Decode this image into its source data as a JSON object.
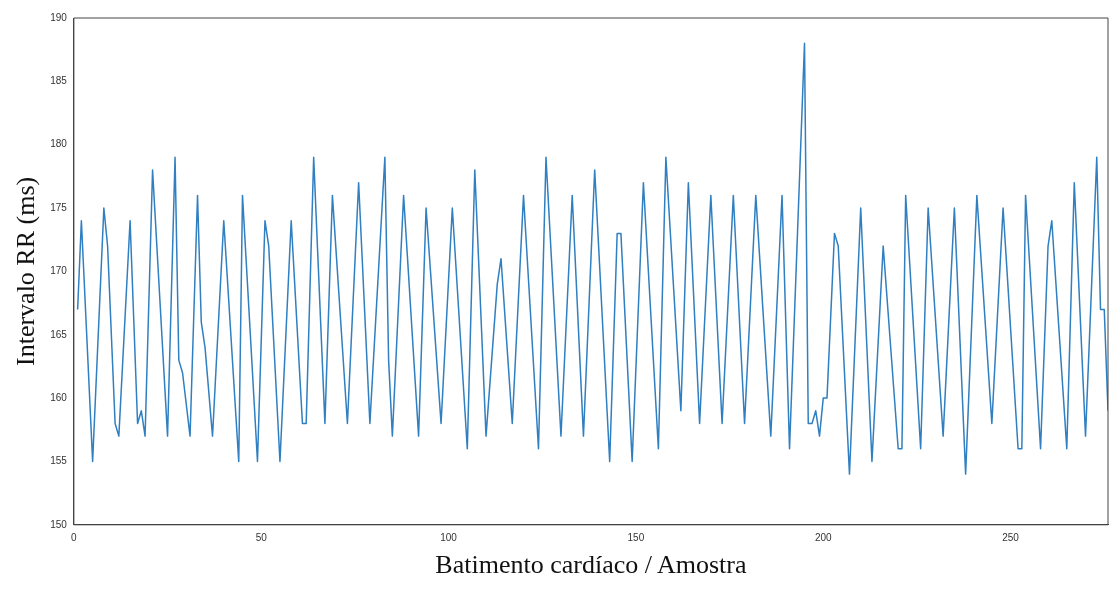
{
  "chart_data": {
    "type": "line",
    "xlabel": "Batimento cardíaco / Amostra",
    "ylabel": "Intervalo RR (ms)",
    "x": [
      1,
      2,
      5,
      8,
      9,
      11,
      12,
      15,
      17,
      18,
      19,
      21,
      25,
      27,
      28,
      29,
      31,
      33,
      34,
      35,
      37,
      40,
      44,
      45,
      49,
      51,
      52,
      55,
      58,
      61,
      62,
      64,
      67,
      69,
      73,
      76,
      79,
      83,
      84,
      85,
      88,
      92,
      94,
      98,
      101,
      105,
      107,
      110,
      113,
      114,
      117,
      120,
      124,
      126,
      130,
      133,
      136,
      139,
      143,
      145,
      146,
      149,
      152,
      156,
      158,
      162,
      164,
      167,
      170,
      173,
      176,
      179,
      182,
      186,
      189,
      191,
      195,
      196,
      197,
      198,
      199,
      200,
      201,
      203,
      204,
      207,
      210,
      213,
      216,
      220,
      221,
      222,
      226,
      228,
      232,
      235,
      238,
      241,
      245,
      248,
      252,
      253,
      254,
      258,
      260,
      261,
      265,
      267,
      270,
      273,
      274,
      275,
      276
    ],
    "series": [
      {
        "color": "#2f7fc1",
        "values": [
          167,
          174,
          155,
          175,
          172,
          158,
          157,
          174,
          158,
          159,
          157,
          178,
          157,
          179,
          163,
          162,
          157,
          176,
          166,
          164,
          157,
          174,
          155,
          176,
          155,
          174,
          172,
          155,
          174,
          158,
          158,
          179,
          158,
          176,
          158,
          177,
          158,
          179,
          163,
          157,
          176,
          157,
          175,
          158,
          175,
          156,
          178,
          157,
          169,
          171,
          158,
          176,
          156,
          179,
          157,
          176,
          157,
          178,
          155,
          173,
          173,
          155,
          177,
          156,
          179,
          159,
          177,
          158,
          176,
          158,
          176,
          158,
          176,
          157,
          176,
          156,
          188,
          158,
          158,
          159,
          157,
          160,
          160,
          173,
          172,
          154,
          175,
          155,
          172,
          156,
          156,
          176,
          156,
          175,
          157,
          175,
          154,
          176,
          158,
          175,
          156,
          156,
          176,
          156,
          172,
          174,
          156,
          177,
          157,
          179,
          167,
          167,
          159
        ]
      }
    ],
    "xlim": [
      0,
      276
    ],
    "xticks": [
      0,
      50,
      100,
      150,
      200,
      250
    ],
    "ylim": [
      150,
      190
    ],
    "yticks": [
      150,
      155,
      160,
      165,
      170,
      175,
      180,
      185,
      190
    ],
    "grid": false,
    "legend": false,
    "marker": "none",
    "line_style": "solid"
  }
}
